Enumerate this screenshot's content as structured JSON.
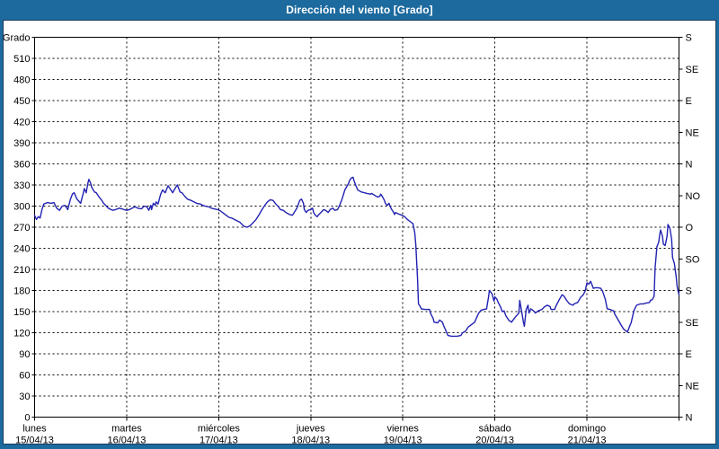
{
  "window": {
    "title": "Dirección del viento [Grado]"
  },
  "colors": {
    "frame": "#1c6a9e",
    "frame_inner_border": "#1b3c5f",
    "title_text": "#ffffff",
    "plot_background": "#ffffff",
    "grid": "#000000",
    "axis": "#000000",
    "line": "#2222b2",
    "label_text": "#000000"
  },
  "chart_data": {
    "type": "line",
    "title": "Dirección del viento [Grado]",
    "ylabel": "Grado",
    "unit": "Grado",
    "grid": {
      "style": "dashed",
      "horizontal_every_deg": 30,
      "vertical_every_day": 1
    },
    "legend": "none",
    "y_axis_left": {
      "min": 0,
      "max": 540,
      "tick_step": 30,
      "highest_numeric_label": 510,
      "corner_label": "Grado"
    },
    "y_axis_right": {
      "tick_step": 45,
      "labels_top_to_bottom": [
        "S",
        "SE",
        "E",
        "NE",
        "N",
        "NO",
        "O",
        "SO",
        "S",
        "SE",
        "E",
        "NE",
        "N"
      ]
    },
    "x_axis": {
      "unit": "days",
      "range_days": 7,
      "day_labels": [
        {
          "name": "lunes",
          "date": "15/04/13"
        },
        {
          "name": "martes",
          "date": "16/04/13"
        },
        {
          "name": "miércoles",
          "date": "17/04/13"
        },
        {
          "name": "jueves",
          "date": "18/04/13"
        },
        {
          "name": "viernes",
          "date": "19/04/13"
        },
        {
          "name": "sábado",
          "date": "20/04/13"
        },
        {
          "name": "domingo",
          "date": "21/04/13"
        }
      ]
    },
    "series": [
      {
        "name": "Dirección del viento",
        "color": "#2222b2",
        "points": [
          [
            0.0,
            287
          ],
          [
            0.02,
            281
          ],
          [
            0.04,
            285
          ],
          [
            0.06,
            283
          ],
          [
            0.08,
            295
          ],
          [
            0.1,
            303
          ],
          [
            0.14,
            305
          ],
          [
            0.18,
            304
          ],
          [
            0.21,
            305
          ],
          [
            0.24,
            297
          ],
          [
            0.27,
            294
          ],
          [
            0.3,
            300
          ],
          [
            0.33,
            301
          ],
          [
            0.36,
            295
          ],
          [
            0.39,
            310
          ],
          [
            0.41,
            317
          ],
          [
            0.43,
            319
          ],
          [
            0.46,
            310
          ],
          [
            0.48,
            307
          ],
          [
            0.5,
            304
          ],
          [
            0.53,
            319
          ],
          [
            0.54,
            325
          ],
          [
            0.56,
            319
          ],
          [
            0.58,
            333
          ],
          [
            0.59,
            338
          ],
          [
            0.61,
            332
          ],
          [
            0.62,
            327
          ],
          [
            0.65,
            320
          ],
          [
            0.67,
            319
          ],
          [
            0.7,
            313
          ],
          [
            0.73,
            308
          ],
          [
            0.75,
            304
          ],
          [
            0.78,
            300
          ],
          [
            0.8,
            297
          ],
          [
            0.83,
            295
          ],
          [
            0.85,
            294
          ],
          [
            0.88,
            295
          ],
          [
            0.92,
            297
          ],
          [
            0.95,
            296
          ],
          [
            0.97,
            295
          ],
          [
            1.0,
            294
          ],
          [
            1.03,
            295
          ],
          [
            1.06,
            297
          ],
          [
            1.09,
            299
          ],
          [
            1.12,
            297
          ],
          [
            1.16,
            296
          ],
          [
            1.19,
            300
          ],
          [
            1.22,
            299
          ],
          [
            1.24,
            294
          ],
          [
            1.26,
            301
          ],
          [
            1.27,
            295
          ],
          [
            1.29,
            304
          ],
          [
            1.31,
            301
          ],
          [
            1.32,
            306
          ],
          [
            1.34,
            303
          ],
          [
            1.37,
            317
          ],
          [
            1.39,
            323
          ],
          [
            1.41,
            320
          ],
          [
            1.42,
            319
          ],
          [
            1.44,
            326
          ],
          [
            1.45,
            329
          ],
          [
            1.48,
            323
          ],
          [
            1.5,
            319
          ],
          [
            1.53,
            326
          ],
          [
            1.55,
            330
          ],
          [
            1.58,
            320
          ],
          [
            1.6,
            319
          ],
          [
            1.63,
            314
          ],
          [
            1.66,
            310
          ],
          [
            1.7,
            308
          ],
          [
            1.73,
            306
          ],
          [
            1.76,
            304
          ],
          [
            1.8,
            303
          ],
          [
            1.83,
            301
          ],
          [
            1.85,
            300
          ],
          [
            1.89,
            299
          ],
          [
            1.92,
            297
          ],
          [
            1.95,
            296
          ],
          [
            1.99,
            295
          ],
          [
            2.02,
            293
          ],
          [
            2.05,
            290
          ],
          [
            2.08,
            287
          ],
          [
            2.11,
            284
          ],
          [
            2.14,
            283
          ],
          [
            2.17,
            281
          ],
          [
            2.2,
            279
          ],
          [
            2.23,
            277
          ],
          [
            2.26,
            273
          ],
          [
            2.28,
            271
          ],
          [
            2.31,
            270
          ],
          [
            2.34,
            272
          ],
          [
            2.37,
            276
          ],
          [
            2.4,
            280
          ],
          [
            2.44,
            288
          ],
          [
            2.47,
            295
          ],
          [
            2.5,
            301
          ],
          [
            2.53,
            306
          ],
          [
            2.56,
            309
          ],
          [
            2.59,
            308
          ],
          [
            2.62,
            303
          ],
          [
            2.65,
            299
          ],
          [
            2.67,
            295
          ],
          [
            2.7,
            294
          ],
          [
            2.73,
            291
          ],
          [
            2.77,
            288
          ],
          [
            2.8,
            287
          ],
          [
            2.82,
            291
          ],
          [
            2.85,
            297
          ],
          [
            2.88,
            308
          ],
          [
            2.9,
            310
          ],
          [
            2.92,
            304
          ],
          [
            2.93,
            295
          ],
          [
            2.95,
            291
          ],
          [
            2.97,
            294
          ],
          [
            3.0,
            295
          ],
          [
            3.02,
            297
          ],
          [
            3.03,
            291
          ],
          [
            3.05,
            287
          ],
          [
            3.07,
            285
          ],
          [
            3.08,
            287
          ],
          [
            3.11,
            291
          ],
          [
            3.14,
            295
          ],
          [
            3.16,
            294
          ],
          [
            3.19,
            291
          ],
          [
            3.21,
            295
          ],
          [
            3.24,
            297
          ],
          [
            3.26,
            294
          ],
          [
            3.29,
            295
          ],
          [
            3.31,
            300
          ],
          [
            3.34,
            310
          ],
          [
            3.37,
            323
          ],
          [
            3.41,
            332
          ],
          [
            3.42,
            336
          ],
          [
            3.44,
            340
          ],
          [
            3.46,
            341
          ],
          [
            3.47,
            336
          ],
          [
            3.49,
            329
          ],
          [
            3.5,
            326
          ],
          [
            3.51,
            323
          ],
          [
            3.55,
            320
          ],
          [
            3.58,
            319
          ],
          [
            3.61,
            318
          ],
          [
            3.65,
            317
          ],
          [
            3.66,
            318
          ],
          [
            3.7,
            315
          ],
          [
            3.71,
            314
          ],
          [
            3.73,
            313
          ],
          [
            3.75,
            314
          ],
          [
            3.76,
            317
          ],
          [
            3.78,
            313
          ],
          [
            3.8,
            308
          ],
          [
            3.81,
            304
          ],
          [
            3.83,
            301
          ],
          [
            3.85,
            304
          ],
          [
            3.86,
            300
          ],
          [
            3.88,
            295
          ],
          [
            3.9,
            291
          ],
          [
            3.91,
            288
          ],
          [
            3.92,
            291
          ],
          [
            3.95,
            289
          ],
          [
            3.99,
            287
          ],
          [
            4.02,
            285
          ],
          [
            4.05,
            281
          ],
          [
            4.09,
            277
          ],
          [
            4.11,
            275
          ],
          [
            4.13,
            262
          ],
          [
            4.14,
            246
          ],
          [
            4.15,
            221
          ],
          [
            4.16,
            196
          ],
          [
            4.17,
            161
          ],
          [
            4.19,
            157
          ],
          [
            4.2,
            154
          ],
          [
            4.24,
            153
          ],
          [
            4.27,
            153
          ],
          [
            4.29,
            153
          ],
          [
            4.3,
            148
          ],
          [
            4.33,
            140
          ],
          [
            4.34,
            135
          ],
          [
            4.38,
            134
          ],
          [
            4.4,
            138
          ],
          [
            4.43,
            135
          ],
          [
            4.44,
            131
          ],
          [
            4.47,
            122
          ],
          [
            4.49,
            116
          ],
          [
            4.53,
            115
          ],
          [
            4.56,
            115
          ],
          [
            4.59,
            115
          ],
          [
            4.63,
            116
          ],
          [
            4.65,
            120
          ],
          [
            4.68,
            122
          ],
          [
            4.71,
            128
          ],
          [
            4.73,
            130
          ],
          [
            4.76,
            133
          ],
          [
            4.78,
            135
          ],
          [
            4.81,
            144
          ],
          [
            4.83,
            149
          ],
          [
            4.85,
            152
          ],
          [
            4.88,
            153
          ],
          [
            4.91,
            154
          ],
          [
            4.93,
            170
          ],
          [
            4.94,
            180
          ],
          [
            4.96,
            177
          ],
          [
            4.97,
            175
          ],
          [
            4.99,
            165
          ],
          [
            5.0,
            171
          ],
          [
            5.02,
            168
          ],
          [
            5.04,
            162
          ],
          [
            5.06,
            157
          ],
          [
            5.08,
            150
          ],
          [
            5.1,
            151
          ],
          [
            5.12,
            144
          ],
          [
            5.15,
            138
          ],
          [
            5.18,
            135
          ],
          [
            5.22,
            142
          ],
          [
            5.26,
            148
          ],
          [
            5.27,
            166
          ],
          [
            5.29,
            151
          ],
          [
            5.31,
            135
          ],
          [
            5.32,
            129
          ],
          [
            5.34,
            153
          ],
          [
            5.36,
            159
          ],
          [
            5.37,
            148
          ],
          [
            5.39,
            154
          ],
          [
            5.42,
            151
          ],
          [
            5.44,
            148
          ],
          [
            5.47,
            151
          ],
          [
            5.51,
            153
          ],
          [
            5.54,
            157
          ],
          [
            5.57,
            159
          ],
          [
            5.6,
            157
          ],
          [
            5.61,
            153
          ],
          [
            5.65,
            153
          ],
          [
            5.66,
            157
          ],
          [
            5.7,
            167
          ],
          [
            5.73,
            174
          ],
          [
            5.75,
            172
          ],
          [
            5.78,
            166
          ],
          [
            5.81,
            161
          ],
          [
            5.85,
            159
          ],
          [
            5.86,
            161
          ],
          [
            5.9,
            163
          ],
          [
            5.93,
            170
          ],
          [
            5.96,
            174
          ],
          [
            5.98,
            179
          ],
          [
            5.99,
            185
          ],
          [
            6.0,
            191
          ],
          [
            6.02,
            189
          ],
          [
            6.04,
            193
          ],
          [
            6.07,
            183
          ],
          [
            6.09,
            184
          ],
          [
            6.12,
            184
          ],
          [
            6.15,
            183
          ],
          [
            6.17,
            179
          ],
          [
            6.2,
            167
          ],
          [
            6.22,
            154
          ],
          [
            6.25,
            153
          ],
          [
            6.29,
            151
          ],
          [
            6.3,
            147
          ],
          [
            6.34,
            138
          ],
          [
            6.37,
            131
          ],
          [
            6.4,
            125
          ],
          [
            6.43,
            122
          ],
          [
            6.44,
            121
          ],
          [
            6.46,
            128
          ],
          [
            6.48,
            134
          ],
          [
            6.49,
            140
          ],
          [
            6.51,
            151
          ],
          [
            6.53,
            157
          ],
          [
            6.54,
            159
          ],
          [
            6.58,
            161
          ],
          [
            6.61,
            161
          ],
          [
            6.64,
            162
          ],
          [
            6.68,
            163
          ],
          [
            6.69,
            166
          ],
          [
            6.71,
            167
          ],
          [
            6.73,
            172
          ],
          [
            6.74,
            212
          ],
          [
            6.76,
            242
          ],
          [
            6.78,
            249
          ],
          [
            6.79,
            259
          ],
          [
            6.8,
            266
          ],
          [
            6.82,
            257
          ],
          [
            6.83,
            246
          ],
          [
            6.85,
            244
          ],
          [
            6.87,
            257
          ],
          [
            6.88,
            274
          ],
          [
            6.9,
            269
          ],
          [
            6.92,
            253
          ],
          [
            6.93,
            227
          ],
          [
            6.95,
            218
          ],
          [
            6.97,
            199
          ],
          [
            6.98,
            185
          ],
          [
            7.0,
            174
          ]
        ]
      }
    ]
  }
}
